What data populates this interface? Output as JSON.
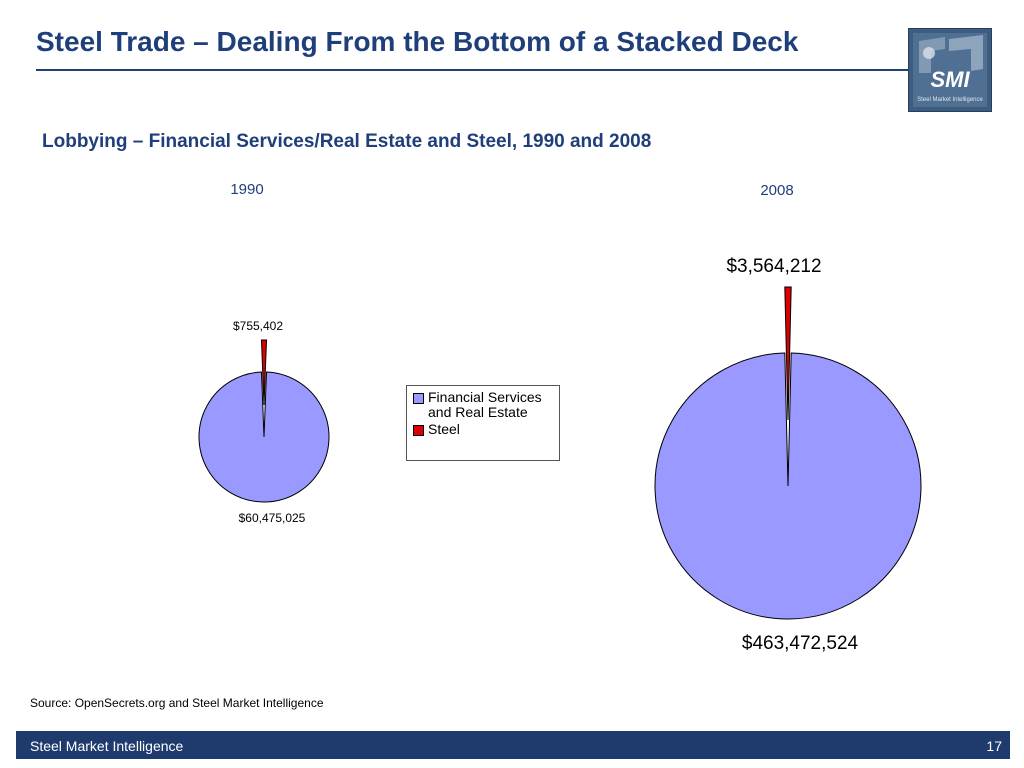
{
  "header": {
    "title": "Steel Trade – Dealing From the Bottom of a Stacked Deck",
    "logo_text": "SMI",
    "logo_caption": "Steel Market Intelligence"
  },
  "subtitle": "Lobbying – Financial Services/Real Estate and Steel, 1990 and 2008",
  "legend": {
    "items": [
      {
        "label_line1": "Financial Services",
        "label_line2": "and Real Estate",
        "color": "#9999ff"
      },
      {
        "label_line1": "Steel",
        "label_line2": "",
        "color": "#dd0000"
      }
    ]
  },
  "chart_data": [
    {
      "type": "pie",
      "title": "1990",
      "slices": [
        {
          "name": "Financial Services and Real Estate",
          "value": 60475025,
          "label": "$60,475,025",
          "color": "#9999ff"
        },
        {
          "name": "Steel",
          "value": 755402,
          "label": "$755,402",
          "color": "#dd0000",
          "exploded": true
        }
      ]
    },
    {
      "type": "pie",
      "title": "2008",
      "slices": [
        {
          "name": "Financial Services and Real Estate",
          "value": 463472524,
          "label": "$463,472,524",
          "color": "#9999ff"
        },
        {
          "name": "Steel",
          "value": 3564212,
          "label": "$3,564,212",
          "color": "#dd0000",
          "exploded": true
        }
      ]
    }
  ],
  "source": "Source: OpenSecrets.org and Steel Market Intelligence",
  "footer": {
    "left": "Steel Market Intelligence",
    "page": "17"
  }
}
